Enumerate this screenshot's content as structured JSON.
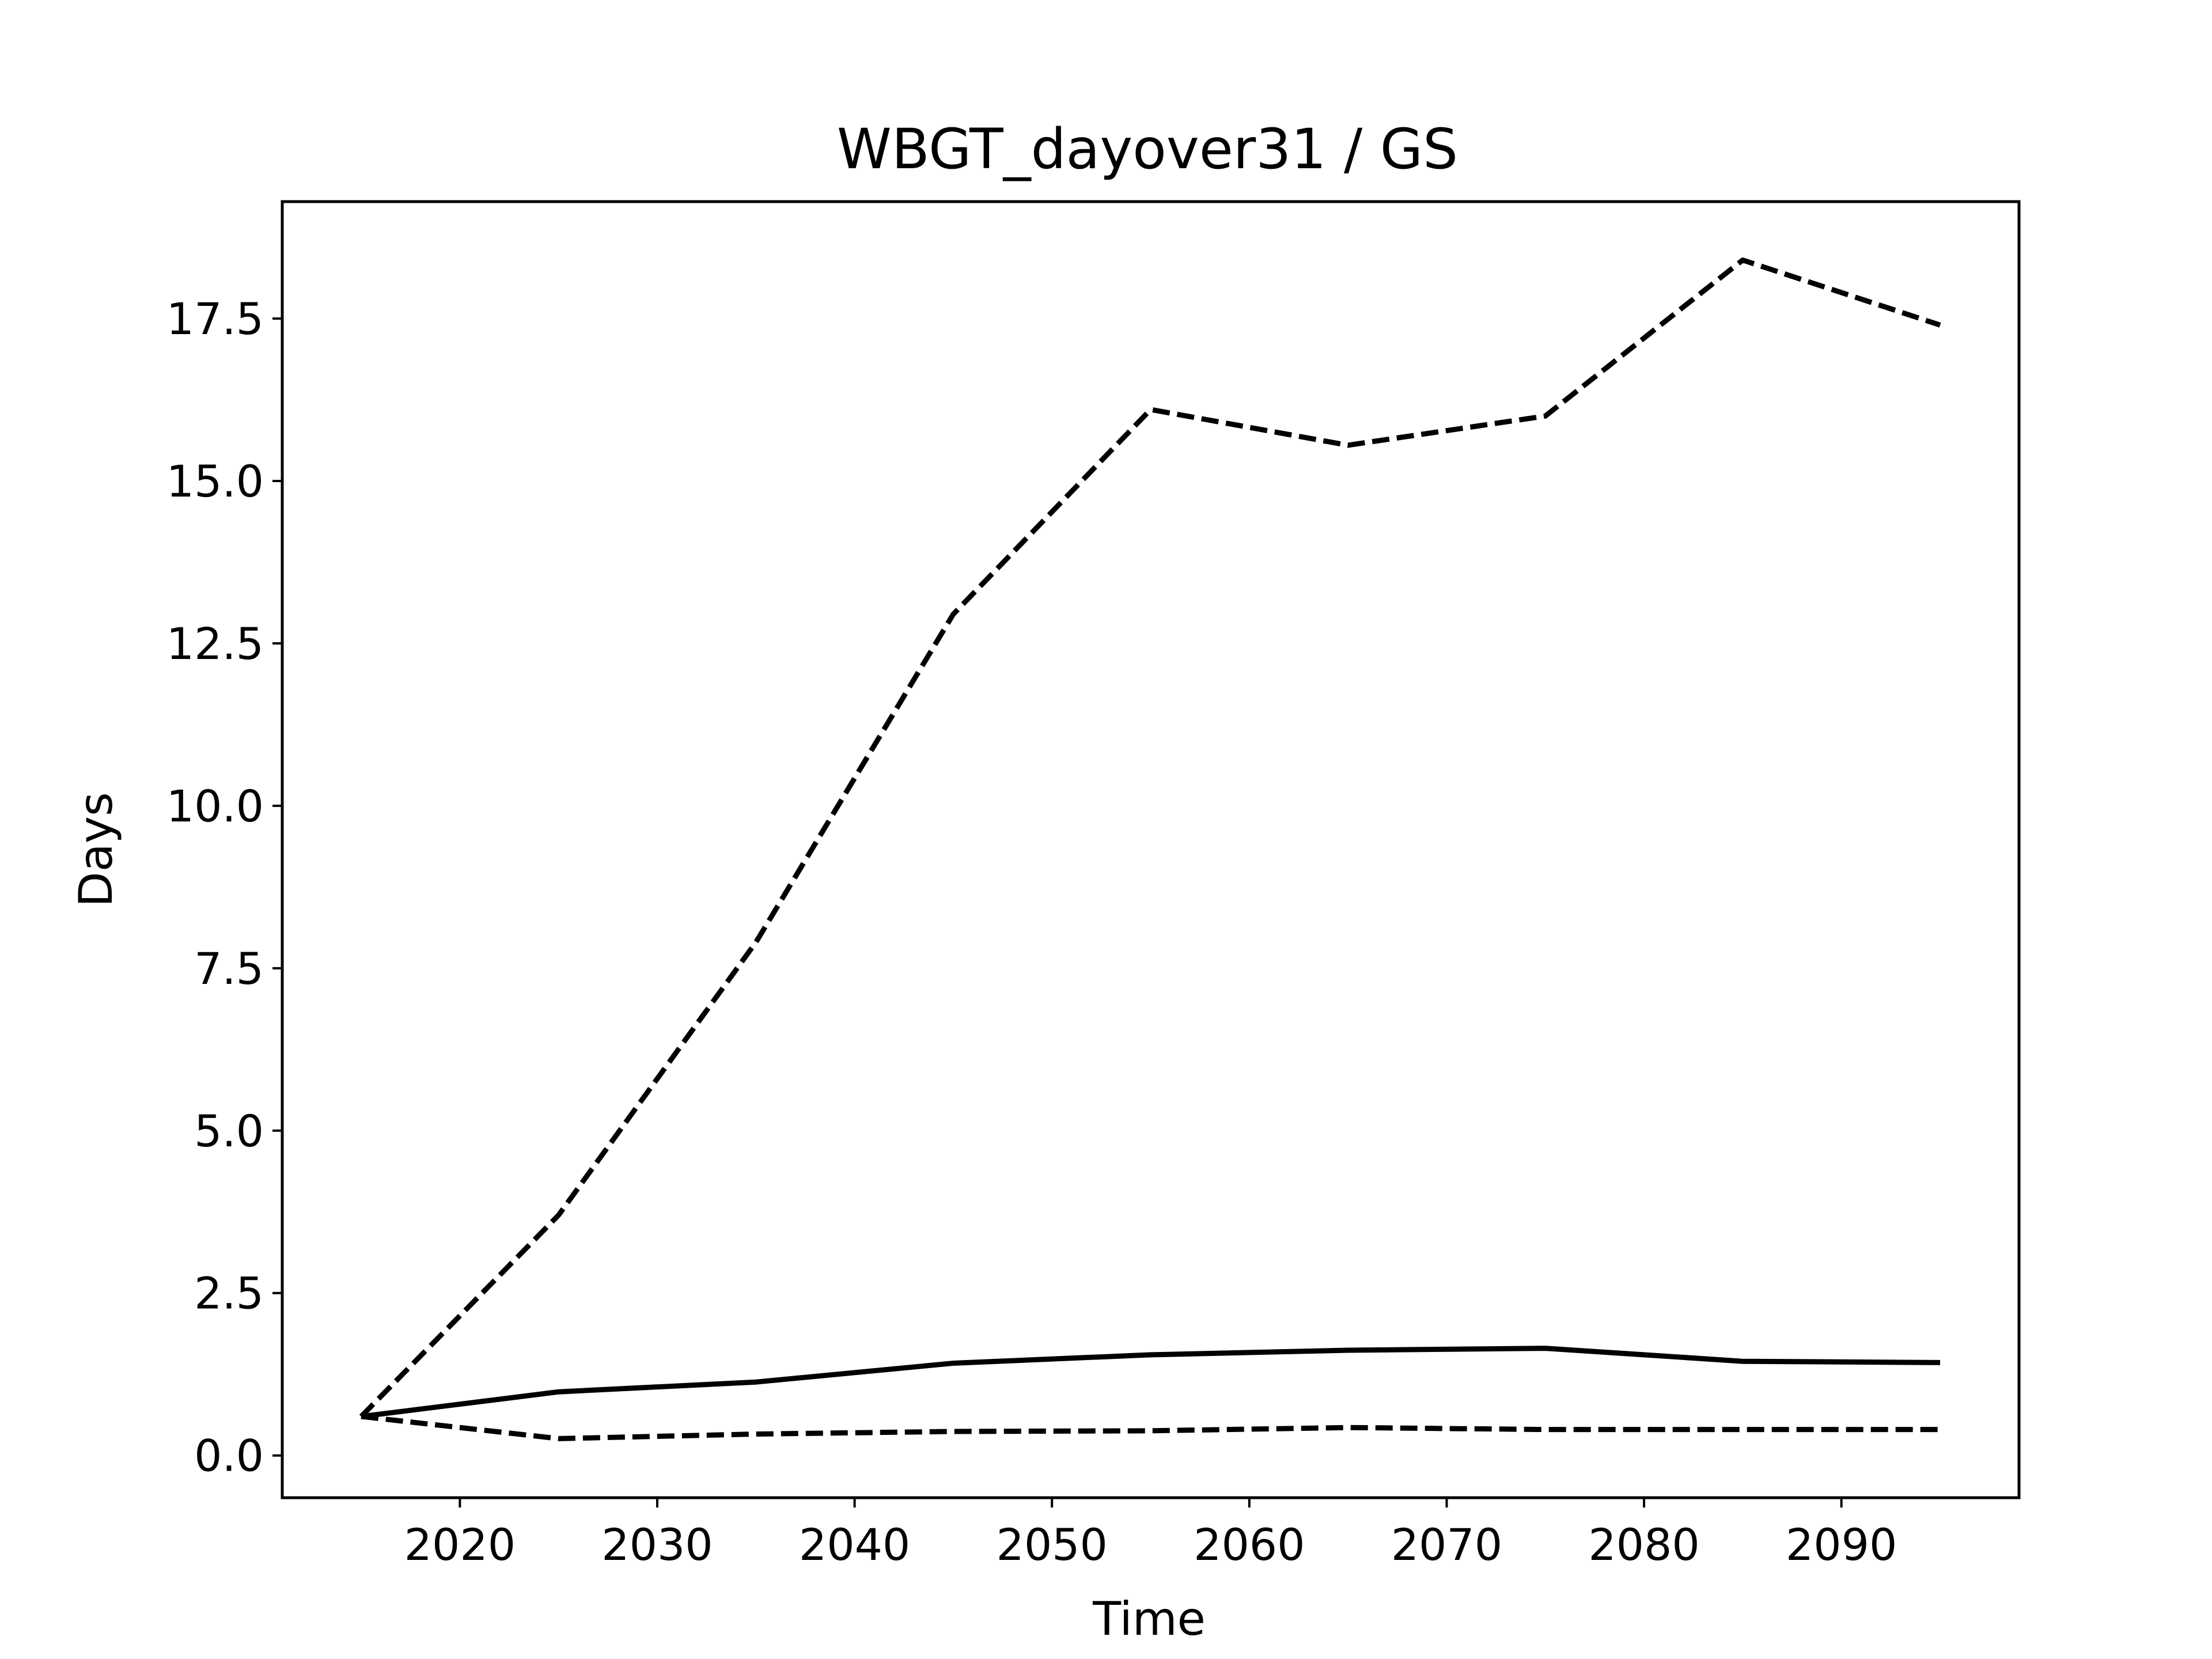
{
  "chart_data": {
    "type": "line",
    "title": "WBGT_dayover31 / GS",
    "xlabel": "Time",
    "ylabel": "Days",
    "xlim": [
      2011,
      2099
    ],
    "ylim": [
      -0.65,
      19.3
    ],
    "xticks": [
      2020,
      2030,
      2040,
      2050,
      2060,
      2070,
      2080,
      2090
    ],
    "yticks": [
      0.0,
      2.5,
      5.0,
      7.5,
      10.0,
      12.5,
      15.0,
      17.5
    ],
    "xtick_labels": [
      "2020",
      "2030",
      "2040",
      "2050",
      "2060",
      "2070",
      "2080",
      "2090"
    ],
    "ytick_labels": [
      "0.0",
      "2.5",
      "5.0",
      "7.5",
      "10.0",
      "12.5",
      "15.0",
      "17.5"
    ],
    "grid": false,
    "legend": "none",
    "x": [
      2015,
      2025,
      2035,
      2045,
      2055,
      2065,
      2075,
      2085,
      2095
    ],
    "series": [
      {
        "style": "dashed",
        "color": "#000000",
        "values": [
          0.6,
          3.7,
          7.9,
          12.95,
          16.1,
          15.55,
          16.0,
          18.4,
          17.4
        ]
      },
      {
        "style": "solid",
        "color": "#000000",
        "values": [
          0.6,
          0.98,
          1.13,
          1.42,
          1.55,
          1.62,
          1.65,
          1.45,
          1.43
        ]
      },
      {
        "style": "dashed",
        "color": "#000000",
        "values": [
          0.6,
          0.26,
          0.33,
          0.37,
          0.38,
          0.43,
          0.4,
          0.4,
          0.4
        ]
      }
    ]
  }
}
